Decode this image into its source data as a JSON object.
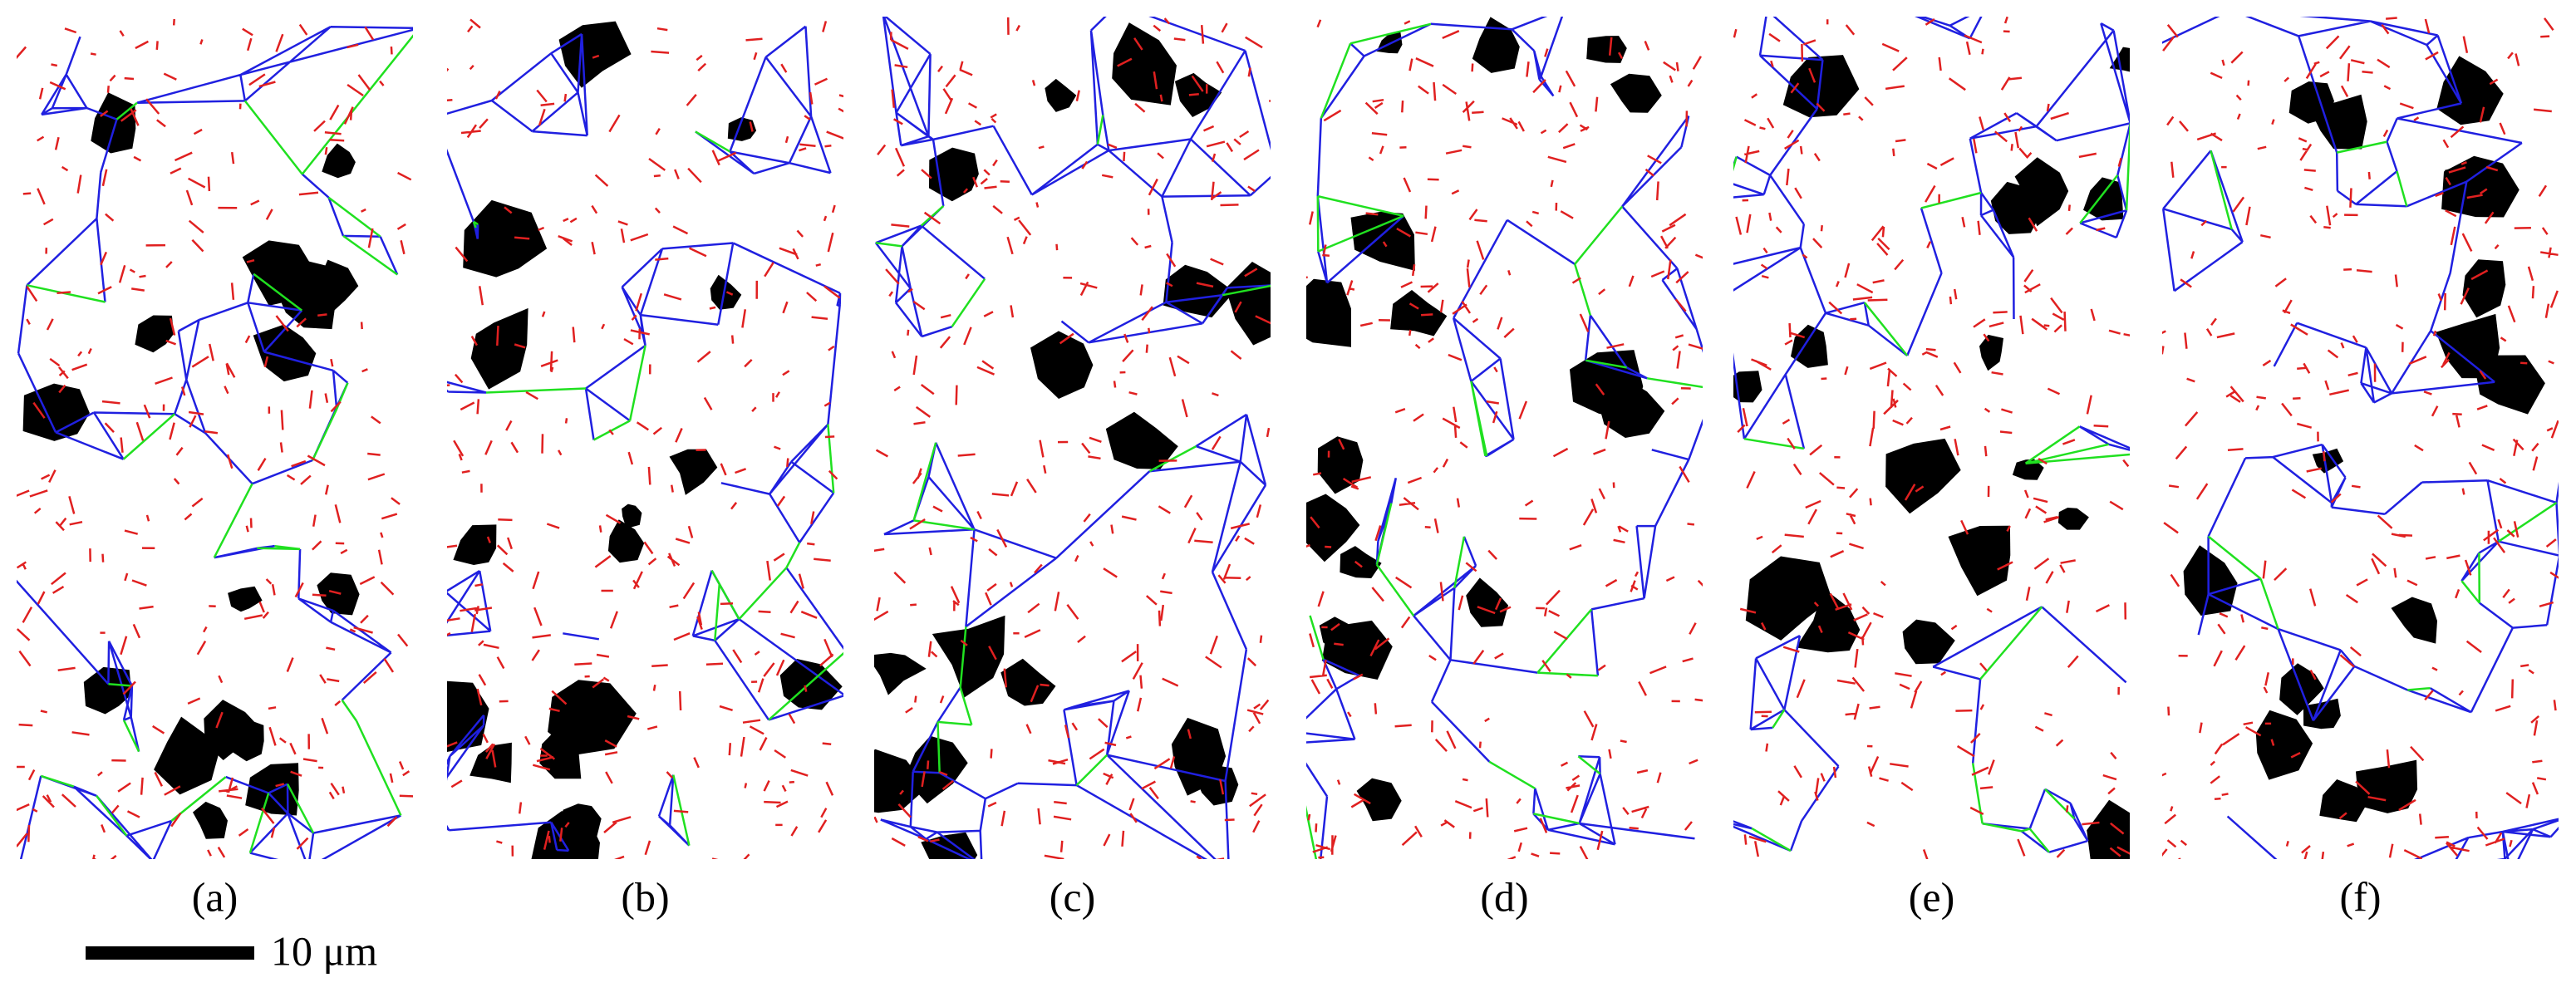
{
  "panels": [
    {
      "label": "(a)"
    },
    {
      "label": "(b)"
    },
    {
      "label": "(c)"
    },
    {
      "label": "(d)"
    },
    {
      "label": "(e)"
    },
    {
      "label": "(f)"
    }
  ],
  "scale_bar": {
    "label": "10 μm"
  }
}
